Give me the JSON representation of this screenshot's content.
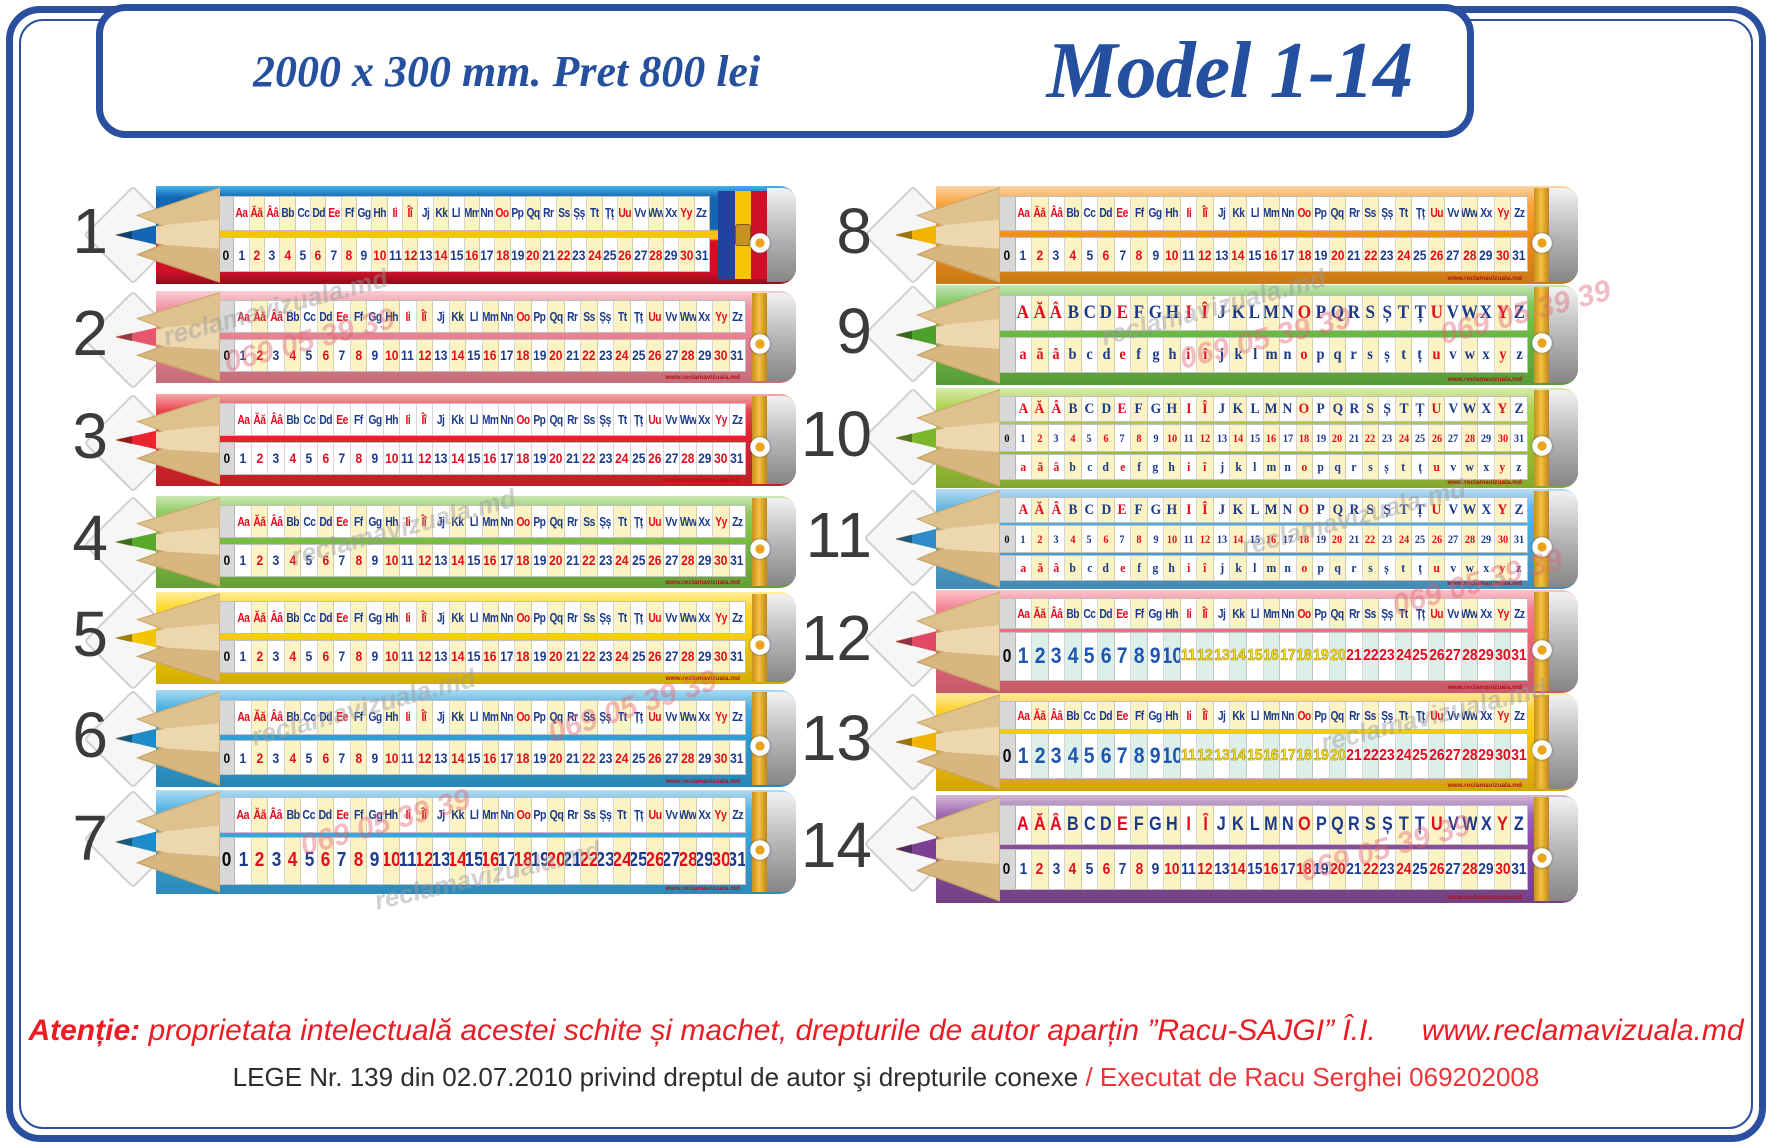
{
  "header": {
    "size_price": "2000 x 300 mm. Pret 800 lei",
    "model": "Model 1-14"
  },
  "alphabet": {
    "pairs": [
      "Aa",
      "Ăă",
      "Ââ",
      "Bb",
      "Cc",
      "Dd",
      "Ee",
      "Ff",
      "Gg",
      "Hh",
      "Ii",
      "Îî",
      "Jj",
      "Kk",
      "Ll",
      "Mm",
      "Nn",
      "Oo",
      "Pp",
      "Qq",
      "Rr",
      "Ss",
      "Șș",
      "Tt",
      "Țț",
      "Uu",
      "Vv",
      "Ww",
      "Xx",
      "Yy",
      "Zz"
    ],
    "upper": [
      "A",
      "Ă",
      "Â",
      "B",
      "C",
      "D",
      "E",
      "F",
      "G",
      "H",
      "I",
      "Î",
      "J",
      "K",
      "L",
      "M",
      "N",
      "O",
      "P",
      "Q",
      "R",
      "S",
      "Ș",
      "T",
      "Ț",
      "U",
      "V",
      "W",
      "X",
      "Y",
      "Z"
    ],
    "lower": [
      "a",
      "ă",
      "â",
      "b",
      "c",
      "d",
      "e",
      "f",
      "g",
      "h",
      "i",
      "î",
      "j",
      "k",
      "l",
      "m",
      "n",
      "o",
      "p",
      "q",
      "r",
      "s",
      "ș",
      "t",
      "ț",
      "u",
      "v",
      "w",
      "x",
      "y",
      "z"
    ],
    "vowel_indices": [
      0,
      1,
      2,
      6,
      10,
      11,
      17,
      25,
      29
    ]
  },
  "numbers": [
    "0",
    "1",
    "2",
    "3",
    "4",
    "5",
    "6",
    "7",
    "8",
    "9",
    "10",
    "11",
    "12",
    "13",
    "14",
    "15",
    "16",
    "17",
    "18",
    "19",
    "20",
    "21",
    "22",
    "23",
    "24",
    "25",
    "26",
    "27",
    "28",
    "29",
    "30",
    "31"
  ],
  "colors": {
    "page_border": "#2a4f9e",
    "title_blue": "#24509f",
    "letter_red": "#e30b1d",
    "letter_navy": "#1b3a8c",
    "group_blue": "#1d55b0",
    "group_yellow": "#ffe40b",
    "group_red": "#e30b1d",
    "cell_yellow": "#fcf3c5",
    "flag_stripes": [
      "#2341a0",
      "#f8c300",
      "#ce1126"
    ]
  },
  "pencils": [
    {
      "label": "1",
      "type": "pairs",
      "body": "#1266b4",
      "variant": "moldova",
      "lead": "#1266b4"
    },
    {
      "label": "2",
      "type": "pairs",
      "body": "#ef8494",
      "lead": "#e8566e"
    },
    {
      "label": "3",
      "type": "pairs",
      "body": "#e8252f",
      "plain_cells": true,
      "lead": "#e8252f"
    },
    {
      "label": "4",
      "type": "pairs",
      "body": "#7cc243",
      "lead": "#58a82c"
    },
    {
      "label": "5",
      "type": "pairs",
      "body": "#ffd200",
      "lead": "#f5c400"
    },
    {
      "label": "6",
      "type": "pairs",
      "body": "#2fa3dc",
      "lead": "#1e8cc8"
    },
    {
      "label": "7",
      "type": "pairs",
      "body": "#38a8e0",
      "large": true,
      "lead": "#1e8cc8"
    },
    {
      "label": "8",
      "type": "pairs",
      "body": "#f7941d",
      "lead": "#f0b400"
    },
    {
      "label": "9",
      "type": "case",
      "body": "#6cbe45",
      "lead": "#4da02c"
    },
    {
      "label": "10",
      "type": "case-num",
      "body": "#a2cc39",
      "lead": "#7cb82c"
    },
    {
      "label": "11",
      "type": "case-num",
      "body": "#4faadc",
      "lead": "#2f8cc8"
    },
    {
      "label": "12",
      "type": "pairs-group",
      "body": "#f26d80",
      "lead": "#e04a64"
    },
    {
      "label": "13",
      "type": "pairs-group",
      "body": "#fdc80a",
      "lead": "#f0b400"
    },
    {
      "label": "14",
      "type": "upper-num",
      "body": "#8e4f9f",
      "lead": "#7c3f92"
    }
  ],
  "imprint": "www.reclamavizuala.md",
  "watermarks": {
    "site": "reclamavizuala.md",
    "phone": "069 05 39 39"
  },
  "footer": {
    "line1_prefix": "Atenție:",
    "line1_text": " proprietata intelectuală acestei schite și machet, drepturile de autor aparțin ”Racu-SAJGI” Î.I.",
    "line1_site": "www.reclamavizuala.md",
    "line2_black": "LEGE Nr. 139 din  02.07.2010 privind dreptul de autor şi drepturile conexe ",
    "line2_red": "/ Executat de Racu Serghei 069202008"
  }
}
